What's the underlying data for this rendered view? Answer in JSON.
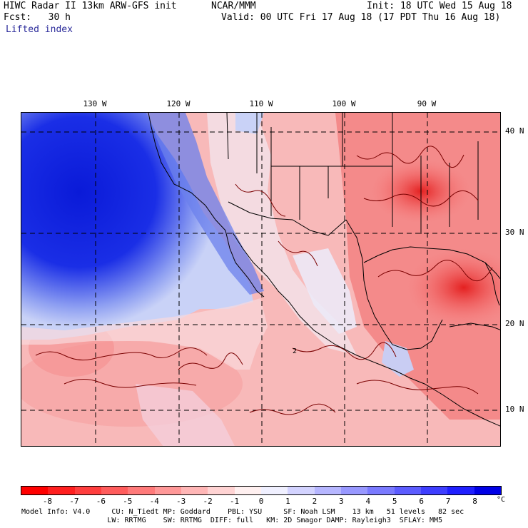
{
  "header": {
    "title": "HIWC Radar II 13km ARW-GFS init",
    "org": "NCAR/MMM",
    "init": "Init: 18 UTC Wed 15 Aug 18",
    "fcst": "Fcst:   30 h",
    "valid": "Valid: 00 UTC Fri 17 Aug 18 (17 PDT Thu 16 Aug 18)",
    "field": "Lifted index"
  },
  "map": {
    "lon_labels": [
      "130 W",
      "120 W",
      "110 W",
      "100 W",
      "90 W"
    ],
    "lat_labels": [
      "40 N",
      "30 N",
      "20 N",
      "10 N"
    ],
    "contour_label": "2"
  },
  "colorbar": {
    "labels": [
      "-8",
      "-7",
      "-6",
      "-5",
      "-4",
      "-3",
      "-2",
      "-1",
      "0",
      "1",
      "2",
      "3",
      "4",
      "5",
      "6",
      "7",
      "8"
    ],
    "unit": "°C",
    "colors": [
      "#ff0000",
      "#ff1f1f",
      "#ff3e3e",
      "#ff5c5c",
      "#ff7a7a",
      "#ff9898",
      "#ffb6b6",
      "#ffd3d3",
      "#fff0f0",
      "#f0f0ff",
      "#d3d3ff",
      "#b6b6ff",
      "#9898ff",
      "#7a7aff",
      "#5c5cff",
      "#3e3eff",
      "#1f1fff",
      "#0000e6"
    ]
  },
  "footer": {
    "line1": "Model Info: V4.0     CU: N_Tiedt MP: Goddard    PBL: YSU     SF: Noah LSM    13 km   51 levels   82 sec",
    "line2": "                    LW: RRTMG    SW: RRTMG  DIFF: full   KM: 2D Smagor DAMP: Rayleigh3  SFLAY: MM5"
  }
}
